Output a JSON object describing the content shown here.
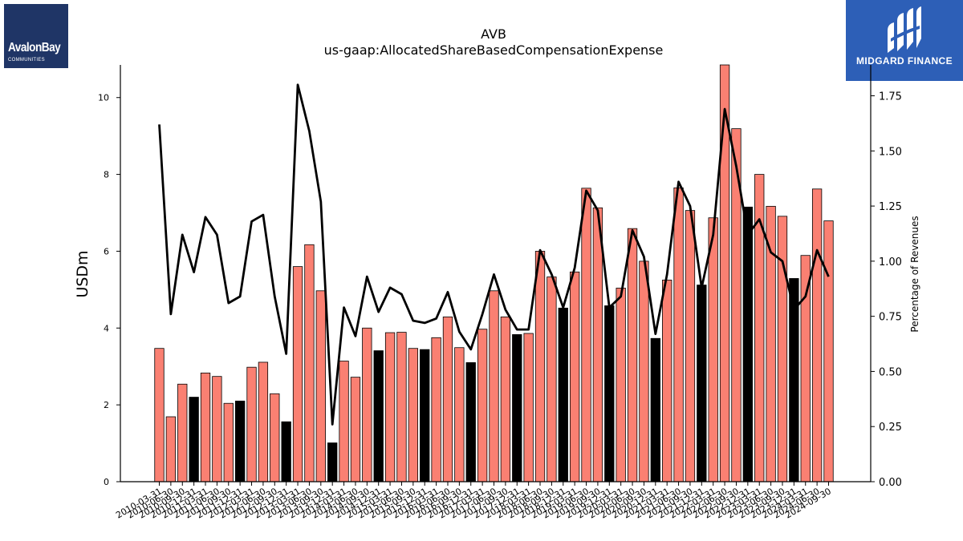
{
  "logos": {
    "left": {
      "name": "AvalonBay",
      "sub": "COMMUNITIES"
    },
    "right": {
      "name": "MIDGARD FINANCE"
    }
  },
  "colors": {
    "bar_default": "#fa8072",
    "bar_highlight": "#000000",
    "line": "#000000"
  },
  "chart_data": {
    "type": "bar",
    "title": "AVB",
    "subtitle": "us-gaap:AllocatedShareBasedCompensationExpense",
    "ylabel": "USDm",
    "y2label": "Percentage of Revenues",
    "ylim": [
      0,
      10.85
    ],
    "y2lim": [
      0,
      1.89
    ],
    "yticks": [
      0,
      2,
      4,
      6,
      8,
      10
    ],
    "y2ticks": [
      "0.00",
      "0.25",
      "0.50",
      "0.75",
      "1.00",
      "1.25",
      "1.50",
      "1.75"
    ],
    "categories": [
      "2010-03-31",
      "2010-06-30",
      "2010-09-30",
      "2010-12-31",
      "2011-03-31",
      "2011-06-30",
      "2011-09-30",
      "2011-12-31",
      "2012-03-31",
      "2012-06-30",
      "2012-09-30",
      "2012-12-31",
      "2013-03-31",
      "2013-06-30",
      "2013-09-30",
      "2013-12-31",
      "2014-03-31",
      "2014-06-30",
      "2014-09-30",
      "2014-12-31",
      "2015-03-31",
      "2015-06-30",
      "2015-09-30",
      "2015-12-31",
      "2016-03-31",
      "2016-06-30",
      "2016-09-30",
      "2016-12-31",
      "2017-03-31",
      "2017-06-30",
      "2017-09-30",
      "2017-12-31",
      "2018-03-31",
      "2018-06-30",
      "2018-09-30",
      "2018-12-31",
      "2019-03-31",
      "2019-06-30",
      "2019-09-30",
      "2019-12-31",
      "2020-03-31",
      "2020-06-30",
      "2020-09-30",
      "2020-12-31",
      "2021-03-31",
      "2021-06-30",
      "2021-09-30",
      "2021-12-31",
      "2022-03-31",
      "2022-06-30",
      "2022-09-30",
      "2022-12-31",
      "2023-03-31",
      "2023-06-30",
      "2023-09-30",
      "2023-12-31",
      "2024-03-31",
      "2024-06-30",
      "2024-09-30"
    ],
    "series": [
      {
        "kind": "bar",
        "values": [
          3.47,
          1.69,
          2.54,
          2.2,
          2.83,
          2.74,
          2.04,
          2.1,
          2.98,
          3.11,
          2.29,
          1.56,
          5.6,
          6.17,
          4.97,
          1.01,
          3.14,
          2.72,
          4.0,
          3.41,
          3.88,
          3.89,
          3.47,
          3.44,
          3.75,
          4.29,
          3.49,
          3.1,
          3.97,
          4.97,
          4.29,
          3.83,
          3.86,
          6.0,
          5.33,
          4.52,
          5.46,
          7.64,
          7.13,
          4.58,
          5.04,
          6.59,
          5.74,
          3.73,
          5.25,
          7.65,
          7.06,
          5.12,
          6.87,
          10.85,
          9.19,
          7.15,
          8.0,
          7.17,
          6.91,
          5.29,
          5.89,
          7.62,
          6.79
        ],
        "highlight": [
          false,
          false,
          false,
          true,
          false,
          false,
          false,
          true,
          false,
          false,
          false,
          true,
          false,
          false,
          false,
          true,
          false,
          false,
          false,
          true,
          false,
          false,
          false,
          true,
          false,
          false,
          false,
          true,
          false,
          false,
          false,
          true,
          false,
          false,
          false,
          true,
          false,
          false,
          false,
          true,
          false,
          false,
          false,
          true,
          false,
          false,
          false,
          true,
          false,
          false,
          false,
          true,
          false,
          false,
          false,
          true,
          false,
          false,
          false
        ]
      },
      {
        "kind": "line",
        "axis": "right",
        "values": [
          1.62,
          0.76,
          1.12,
          0.95,
          1.2,
          1.12,
          0.81,
          0.84,
          1.18,
          1.21,
          0.84,
          0.58,
          1.8,
          1.59,
          1.27,
          0.26,
          0.79,
          0.66,
          0.93,
          0.77,
          0.88,
          0.85,
          0.73,
          0.72,
          0.74,
          0.86,
          0.68,
          0.6,
          0.76,
          0.94,
          0.78,
          0.69,
          0.69,
          1.05,
          0.94,
          0.79,
          0.97,
          1.32,
          1.23,
          0.79,
          0.84,
          1.14,
          1.02,
          0.67,
          0.94,
          1.36,
          1.25,
          0.88,
          1.12,
          1.69,
          1.43,
          1.12,
          1.19,
          1.04,
          1.0,
          0.78,
          0.84,
          1.05,
          0.93
        ]
      }
    ]
  }
}
